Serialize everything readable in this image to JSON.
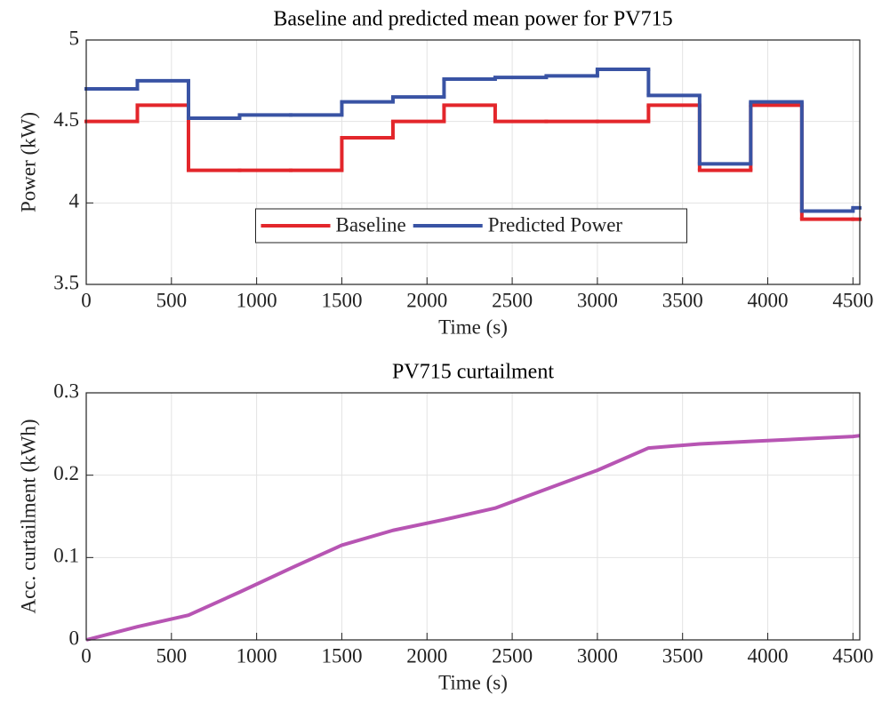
{
  "chart_data": [
    {
      "type": "step",
      "title": "Baseline and predicted mean power for PV715",
      "xlabel": "Time (s)",
      "ylabel": "Power (kW)",
      "x": [
        0,
        300,
        600,
        900,
        1200,
        1500,
        1800,
        2100,
        2400,
        2700,
        3000,
        3300,
        3600,
        3900,
        4200,
        4500
      ],
      "series": [
        {
          "name": "Baseline",
          "color": "#e3262b",
          "values": [
            4.5,
            4.6,
            4.2,
            4.2,
            4.2,
            4.4,
            4.5,
            4.6,
            4.5,
            4.5,
            4.5,
            4.6,
            4.2,
            4.6,
            3.9,
            3.9
          ]
        },
        {
          "name": "Predicted Power",
          "color": "#3953a4",
          "values": [
            4.7,
            4.75,
            4.52,
            4.54,
            4.54,
            4.62,
            4.65,
            4.76,
            4.77,
            4.78,
            4.82,
            4.66,
            4.24,
            4.62,
            3.95,
            3.97
          ]
        }
      ],
      "xlim": [
        0,
        4540
      ],
      "xticks": [
        0,
        500,
        1000,
        1500,
        2000,
        2500,
        3000,
        3500,
        4000,
        4500
      ],
      "ylim": [
        3.5,
        5
      ],
      "yticks": [
        3.5,
        4,
        4.5,
        5
      ],
      "grid": true,
      "legend": "south"
    },
    {
      "type": "line",
      "title": "PV715 curtailment",
      "xlabel": "Time (s)",
      "ylabel": "Acc. curtailment (kWh)",
      "x": [
        0,
        300,
        600,
        900,
        1200,
        1500,
        1800,
        2100,
        2400,
        2700,
        3000,
        3300,
        3600,
        3900,
        4200,
        4500,
        4540
      ],
      "series": [
        {
          "name": "Curtailment",
          "color": "#b755b3",
          "values": [
            0,
            0.016,
            0.03,
            0.058,
            0.087,
            0.115,
            0.133,
            0.146,
            0.16,
            0.183,
            0.206,
            0.233,
            0.238,
            0.241,
            0.244,
            0.247,
            0.248
          ]
        }
      ],
      "xlim": [
        0,
        4540
      ],
      "xticks": [
        0,
        500,
        1000,
        1500,
        2000,
        2500,
        3000,
        3500,
        4000,
        4500
      ],
      "ylim": [
        0,
        0.3
      ],
      "yticks": [
        0,
        0.1,
        0.2,
        0.3
      ],
      "grid": true,
      "legend": "none"
    }
  ]
}
